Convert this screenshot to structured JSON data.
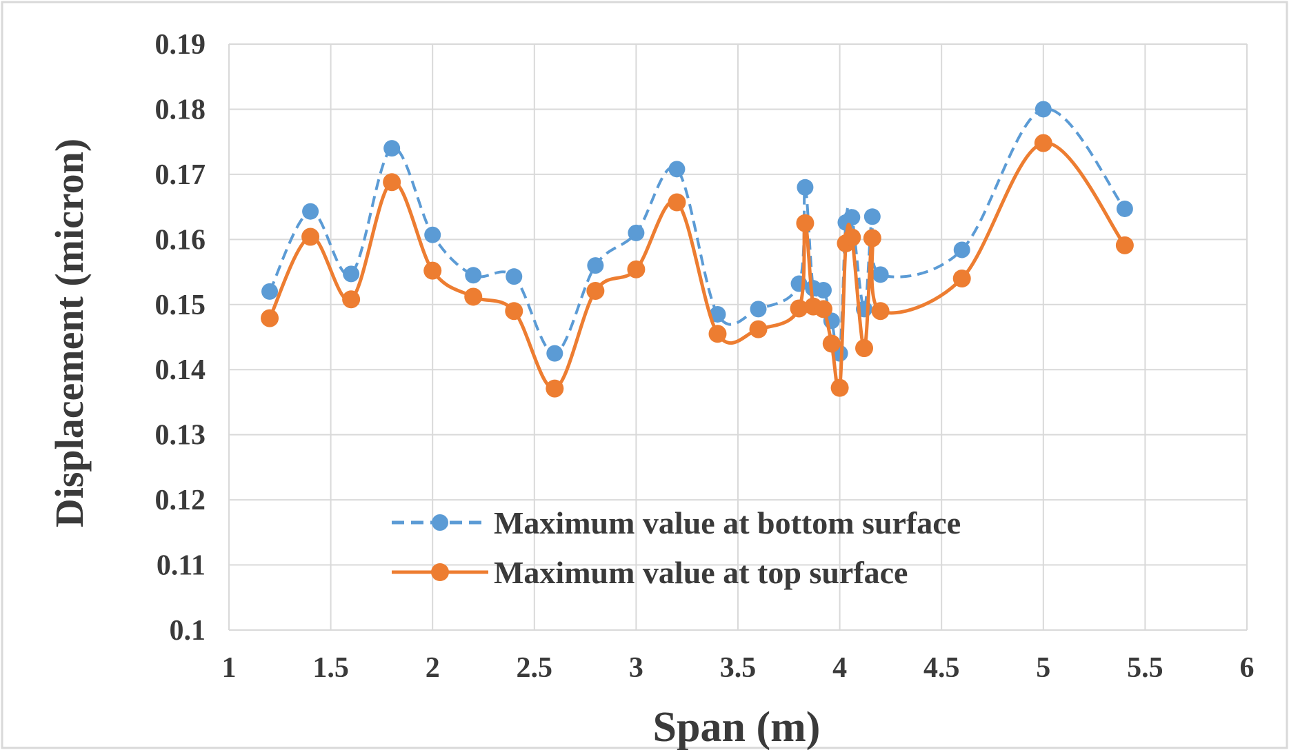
{
  "chart_data": {
    "type": "line",
    "xlabel": "Span (m)",
    "ylabel": "Displacement (micron)",
    "xlim": [
      1,
      6
    ],
    "ylim": [
      0.1,
      0.19
    ],
    "x_ticks": [
      "1",
      "1.5",
      "2",
      "2.5",
      "3",
      "3.5",
      "4",
      "4.5",
      "5",
      "5.5",
      "6"
    ],
    "y_ticks": [
      "0.19",
      "0.18",
      "0.17",
      "0.16",
      "0.15",
      "0.14",
      "0.13",
      "0.12",
      "0.11",
      "0.1"
    ],
    "grid": true,
    "legend_position": "bottom-center",
    "series": [
      {
        "name": "Maximum value at bottom surface",
        "color": "#5b9bd5",
        "line_style": "dashed",
        "marker": "circle",
        "points": [
          [
            1.2,
            0.152
          ],
          [
            1.4,
            0.1643
          ],
          [
            1.6,
            0.1547
          ],
          [
            1.8,
            0.174
          ],
          [
            2.0,
            0.1607
          ],
          [
            2.2,
            0.1545
          ],
          [
            2.4,
            0.1543
          ],
          [
            2.6,
            0.1425
          ],
          [
            2.8,
            0.156
          ],
          [
            3.0,
            0.161
          ],
          [
            3.2,
            0.1708
          ],
          [
            3.4,
            0.1485
          ],
          [
            3.6,
            0.1493
          ],
          [
            3.8,
            0.1532
          ],
          [
            3.83,
            0.168
          ],
          [
            3.87,
            0.1525
          ],
          [
            3.92,
            0.1522
          ],
          [
            3.96,
            0.1475
          ],
          [
            4.0,
            0.1425
          ],
          [
            4.03,
            0.1626
          ],
          [
            4.06,
            0.1634
          ],
          [
            4.12,
            0.1493
          ],
          [
            4.16,
            0.1635
          ],
          [
            4.2,
            0.1546
          ],
          [
            4.6,
            0.1584
          ],
          [
            5.0,
            0.18
          ],
          [
            5.4,
            0.1647
          ]
        ]
      },
      {
        "name": "Maximum value at top surface",
        "color": "#ed7d31",
        "line_style": "solid",
        "marker": "circle",
        "points": [
          [
            1.2,
            0.1479
          ],
          [
            1.4,
            0.1604
          ],
          [
            1.6,
            0.1508
          ],
          [
            1.8,
            0.1688
          ],
          [
            2.0,
            0.1552
          ],
          [
            2.2,
            0.1512
          ],
          [
            2.4,
            0.149
          ],
          [
            2.6,
            0.1371
          ],
          [
            2.8,
            0.1521
          ],
          [
            3.0,
            0.1554
          ],
          [
            3.2,
            0.1657
          ],
          [
            3.4,
            0.1455
          ],
          [
            3.6,
            0.1462
          ],
          [
            3.8,
            0.1494
          ],
          [
            3.83,
            0.1625
          ],
          [
            3.87,
            0.1497
          ],
          [
            3.92,
            0.1493
          ],
          [
            3.96,
            0.144
          ],
          [
            4.0,
            0.1372
          ],
          [
            4.03,
            0.1594
          ],
          [
            4.06,
            0.1603
          ],
          [
            4.12,
            0.1433
          ],
          [
            4.16,
            0.1602
          ],
          [
            4.2,
            0.149
          ],
          [
            4.6,
            0.154
          ],
          [
            5.0,
            0.1748
          ],
          [
            5.4,
            0.1591
          ]
        ]
      }
    ]
  }
}
